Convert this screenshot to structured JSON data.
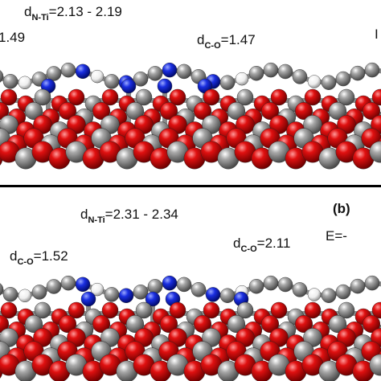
{
  "panel_a": {
    "n_ti": {
      "symbol": "d",
      "subscript": "N-Ti",
      "value": "=2.13 - 2.19"
    },
    "left_fragment": "1.49",
    "c_o": {
      "symbol": "d",
      "subscript": "C-O",
      "value": "=1.47"
    },
    "right_fragment": "I"
  },
  "panel_b": {
    "label": "(b)",
    "energy_fragment": "E=-",
    "n_ti": {
      "symbol": "d",
      "subscript": "N-Ti",
      "value": "=2.31 - 2.34"
    },
    "c_o_left": {
      "symbol": "d",
      "subscript": "C-O",
      "value": "=1.52"
    },
    "c_o_right": {
      "symbol": "d",
      "subscript": "C-O",
      "value": "=2.11"
    }
  }
}
